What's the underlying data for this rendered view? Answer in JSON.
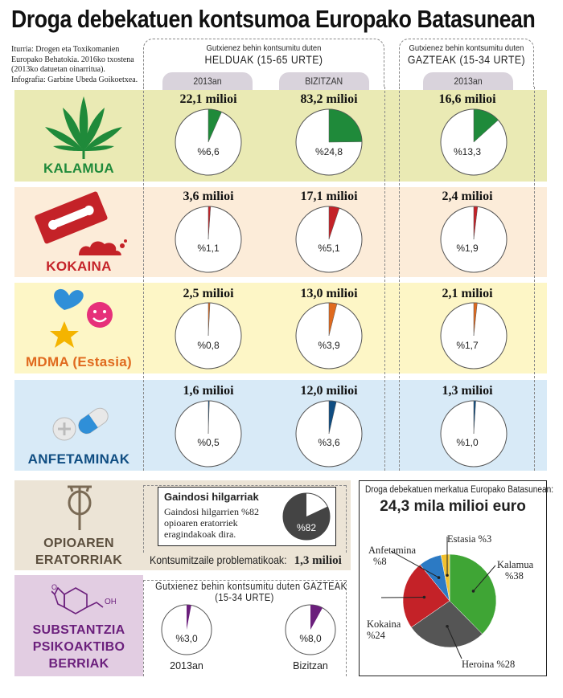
{
  "title": "Droga debekatuen kontsumoa Europako Batasunean",
  "source": {
    "line1": "Iturria: Drogen eta Toxikomanien",
    "line2": "Europako Behatokia. 2016ko txostena",
    "line3": "(2013ko datuetan oinarritua).",
    "line4": "Infografia: Garbine Ubeda Goikoetxea."
  },
  "columns": {
    "adults": {
      "sub": "Gutxienez behin kontsumitu duten",
      "main": "HELDUAK (15-65 URTE)",
      "tab_2013": "2013an",
      "tab_life": "BIZITZAN"
    },
    "young": {
      "sub": "Gutxienez behin kontsumitu duten",
      "main": "GAZTEAK (15-34 URTE)",
      "tab_2013": "2013an"
    }
  },
  "colors": {
    "kalamua_bg": "#eaeab4",
    "kokaina_bg": "#fcecd9",
    "mdma_bg": "#fdf6c6",
    "anfeta_bg": "#d8eaf7",
    "opio_bg": "#ece4d6",
    "npsbg": "#e2cde2",
    "green": "#1f8a3a",
    "red": "#c42228",
    "orange": "#e06a1e",
    "blue": "#0f4d82",
    "purple": "#6b1f7c"
  },
  "chart_data": {
    "type": "pie",
    "rows": [
      {
        "drug": "KALAMUA",
        "color": "#1f8a3a",
        "adults_2013": {
          "value": "22,1 milioi",
          "label": "%6,6",
          "pct": 6.6
        },
        "adults_life": {
          "value": "83,2 milioi",
          "label": "%24,8",
          "pct": 24.8
        },
        "young_2013": {
          "value": "16,6 milioi",
          "label": "%13,3",
          "pct": 13.3
        }
      },
      {
        "drug": "KOKAINA",
        "color": "#c42228",
        "adults_2013": {
          "value": "3,6 milioi",
          "label": "%1,1",
          "pct": 1.1
        },
        "adults_life": {
          "value": "17,1 milioi",
          "label": "%5,1",
          "pct": 5.1
        },
        "young_2013": {
          "value": "2,4 milioi",
          "label": "%1,9",
          "pct": 1.9
        }
      },
      {
        "drug": "MDMA (Estasia)",
        "color": "#e06a1e",
        "adults_2013": {
          "value": "2,5 milioi",
          "label": "%0,8",
          "pct": 0.8
        },
        "adults_life": {
          "value": "13,0 milioi",
          "label": "%3,9",
          "pct": 3.9
        },
        "young_2013": {
          "value": "2,1 milioi",
          "label": "%1,7",
          "pct": 1.7
        }
      },
      {
        "drug": "ANFETAMINAK",
        "color": "#0f4d82",
        "adults_2013": {
          "value": "1,6 milioi",
          "label": "%0,5",
          "pct": 0.5
        },
        "adults_life": {
          "value": "12,0 milioi",
          "label": "%3,6",
          "pct": 3.6
        },
        "young_2013": {
          "value": "1,3 milioi",
          "label": "%1,0",
          "pct": 1.0
        }
      }
    ],
    "opioids": {
      "name1": "OPIOAREN",
      "name2": "ERATORRIAK",
      "overdose_title": "Gaindosi hilgarriak",
      "overdose_text1": "Gaindosi hilgarrien %82",
      "overdose_text2": "opioaren eratorriek",
      "overdose_text3": "eragindakoak dira.",
      "overdose_label": "%82",
      "overdose_pct": 82,
      "problem_label": "Kontsumitzaile problematikoak:",
      "problem_value": "1,3 milioi"
    },
    "nps": {
      "name1": "SUBSTANTZIA",
      "name2": "PSIKOAKTIBO",
      "name3": "BERRIAK",
      "head1": "Gutxienez behin kontsumitu duten GAZTEAK",
      "head2": "(15-34 URTE)",
      "pies": [
        {
          "label": "%3,0",
          "pct": 3.0,
          "caption": "2013an"
        },
        {
          "label": "%8,0",
          "pct": 8.0,
          "caption": "Bizitzan"
        }
      ]
    },
    "market": {
      "title": "Droga debekatuen merkatua Europako Batasunean:",
      "total": "24,3 mila milioi euro",
      "slices": [
        {
          "name": "Kalamua",
          "label1": "Kalamua",
          "label2": "%38",
          "pct": 38,
          "color": "#3fa535"
        },
        {
          "name": "Heroina",
          "label1": "Heroina %28",
          "label2": "",
          "pct": 28,
          "color": "#555555"
        },
        {
          "name": "Kokaina",
          "label1": "Kokaina",
          "label2": "%24",
          "pct": 24,
          "color": "#c42228"
        },
        {
          "name": "Anfetamina",
          "label1": "Anfetamina",
          "label2": "%8",
          "pct": 8,
          "color": "#2c7ac4"
        },
        {
          "name": "Estasia",
          "label1": "Estasia %3",
          "label2": "",
          "pct": 3,
          "color": "#f2c12e"
        }
      ]
    }
  }
}
